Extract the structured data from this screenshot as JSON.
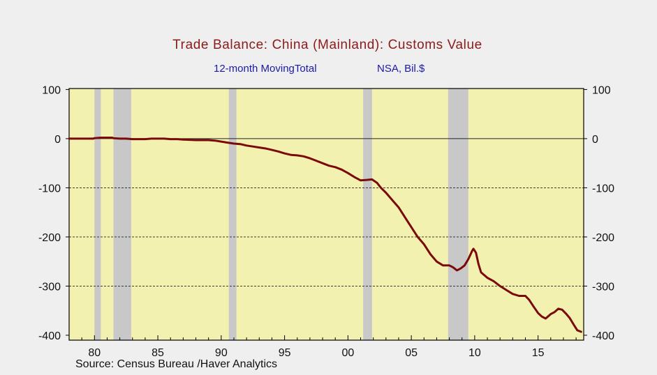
{
  "chart_data": {
    "type": "line",
    "title": "Trade Balance: China (Mainland): Customs Value",
    "subtitle_left": "12-month MovingTotal",
    "subtitle_right": "NSA, Bil.$",
    "source": "Source:  Census Bureau /Haver Analytics",
    "xlim": [
      1978.0,
      2018.6
    ],
    "ylim": [
      -410,
      102
    ],
    "x_ticks": [
      {
        "value": 1980,
        "label": "80"
      },
      {
        "value": 1985,
        "label": "85"
      },
      {
        "value": 1990,
        "label": "90"
      },
      {
        "value": 1995,
        "label": "95"
      },
      {
        "value": 2000,
        "label": "00"
      },
      {
        "value": 2005,
        "label": "05"
      },
      {
        "value": 2010,
        "label": "10"
      },
      {
        "value": 2015,
        "label": "15"
      }
    ],
    "y_ticks": [
      {
        "value": 100,
        "label": "100"
      },
      {
        "value": 0,
        "label": "0"
      },
      {
        "value": -100,
        "label": "-100"
      },
      {
        "value": -200,
        "label": "-200"
      },
      {
        "value": -300,
        "label": "-300"
      },
      {
        "value": -400,
        "label": "-400"
      }
    ],
    "gridlines": [
      0,
      -100,
      -200,
      -300
    ],
    "recessions": [
      {
        "start": 1980.0,
        "end": 1980.5
      },
      {
        "start": 1981.5,
        "end": 1982.9
      },
      {
        "start": 1990.6,
        "end": 1991.2
      },
      {
        "start": 2001.2,
        "end": 2001.9
      },
      {
        "start": 2007.9,
        "end": 2009.5
      }
    ],
    "colors": {
      "plot_bg": "#f3f1b0",
      "recession": "#c8c8c8",
      "line": "#7a0a0a",
      "title": "#8b1a1a",
      "subtitle": "#1a1aa8"
    },
    "series": [
      {
        "x": [
          1978.0,
          1979.0,
          1979.9,
          1980.0,
          1980.5,
          1981.0,
          1981.4,
          1981.5,
          1982.0,
          1982.5,
          1983.0,
          1983.5,
          1984.0,
          1984.5,
          1985.0,
          1985.5,
          1986.0,
          1986.5,
          1987.0,
          1988.0,
          1989.0,
          1989.5,
          1990.0,
          1990.5,
          1991.0,
          1991.5,
          1992.0,
          1992.5,
          1993.0,
          1993.5,
          1994.0,
          1994.5,
          1995.0,
          1995.5,
          1996.0,
          1996.5,
          1997.0,
          1997.5,
          1998.0,
          1998.5,
          1999.0,
          1999.5,
          2000.0,
          2000.5,
          2001.0,
          2001.5,
          2001.9,
          2002.3,
          2002.6,
          2003.0,
          2003.5,
          2004.0,
          2004.5,
          2005.0,
          2005.5,
          2006.0,
          2006.5,
          2007.0,
          2007.5,
          2008.0,
          2008.3,
          2008.6,
          2008.9,
          2009.2,
          2009.5,
          2009.8,
          2009.9,
          2010.1,
          2010.3,
          2010.5,
          2011.0,
          2011.5,
          2012.0,
          2012.5,
          2013.0,
          2013.5,
          2014.0,
          2014.3,
          2014.6,
          2015.0,
          2015.3,
          2015.6,
          2016.0,
          2016.3,
          2016.6,
          2016.9,
          2017.2,
          2017.5,
          2017.8,
          2018.1,
          2018.4
        ],
        "y": [
          0,
          0,
          0,
          1,
          2,
          2,
          2,
          1,
          0,
          0,
          -1,
          -1,
          -1,
          0,
          0,
          0,
          -1,
          -1,
          -2,
          -3,
          -3,
          -4,
          -6,
          -8,
          -10,
          -11,
          -14,
          -16,
          -18,
          -20,
          -23,
          -26,
          -30,
          -33,
          -34,
          -36,
          -40,
          -45,
          -50,
          -55,
          -58,
          -63,
          -70,
          -78,
          -85,
          -84,
          -83,
          -90,
          -100,
          -110,
          -125,
          -140,
          -160,
          -180,
          -200,
          -215,
          -235,
          -250,
          -258,
          -258,
          -262,
          -268,
          -264,
          -258,
          -245,
          -228,
          -224,
          -232,
          -255,
          -272,
          -283,
          -290,
          -300,
          -308,
          -316,
          -320,
          -320,
          -328,
          -340,
          -355,
          -362,
          -366,
          -357,
          -353,
          -346,
          -348,
          -356,
          -365,
          -378,
          -390,
          -393
        ]
      }
    ]
  }
}
